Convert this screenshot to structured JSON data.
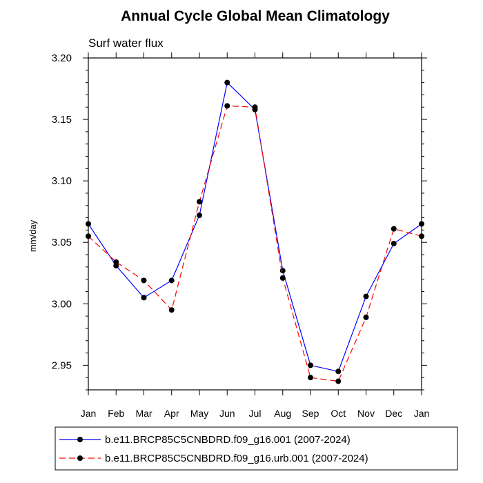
{
  "chart_data": {
    "type": "line",
    "title": "Annual Cycle Global Mean Climatology",
    "subtitle": "Surf water flux",
    "xlabel": "",
    "ylabel": "mm/day",
    "categories": [
      "Jan",
      "Feb",
      "Mar",
      "Apr",
      "May",
      "Jun",
      "Jul",
      "Aug",
      "Sep",
      "Oct",
      "Nov",
      "Dec",
      "Jan"
    ],
    "ylim": [
      2.93,
      3.2
    ],
    "yticks": [
      2.95,
      3.0,
      3.05,
      3.1,
      3.15,
      3.2
    ],
    "ytick_labels": [
      "2.95",
      "3.00",
      "3.05",
      "3.10",
      "3.15",
      "3.20"
    ],
    "grid": false,
    "legend_position": "bottom",
    "series": [
      {
        "name": "b.e11.BRCP85C5CNBDRD.f09_g16.001 (2007-2024)",
        "color": "#0000ff",
        "line_style": "solid",
        "marker": "filled-circle",
        "values": [
          3.065,
          3.031,
          3.005,
          3.019,
          3.072,
          3.18,
          3.158,
          3.027,
          2.95,
          2.945,
          3.006,
          3.049,
          3.065
        ]
      },
      {
        "name": "b.e11.BRCP85C5CNBDRD.f09_g16.urb.001 (2007-2024)",
        "color": "#ff0000",
        "line_style": "dashed",
        "marker": "filled-circle",
        "values": [
          3.055,
          3.034,
          3.019,
          2.995,
          3.083,
          3.161,
          3.16,
          3.021,
          2.94,
          2.937,
          2.989,
          3.061,
          3.055
        ]
      }
    ]
  }
}
